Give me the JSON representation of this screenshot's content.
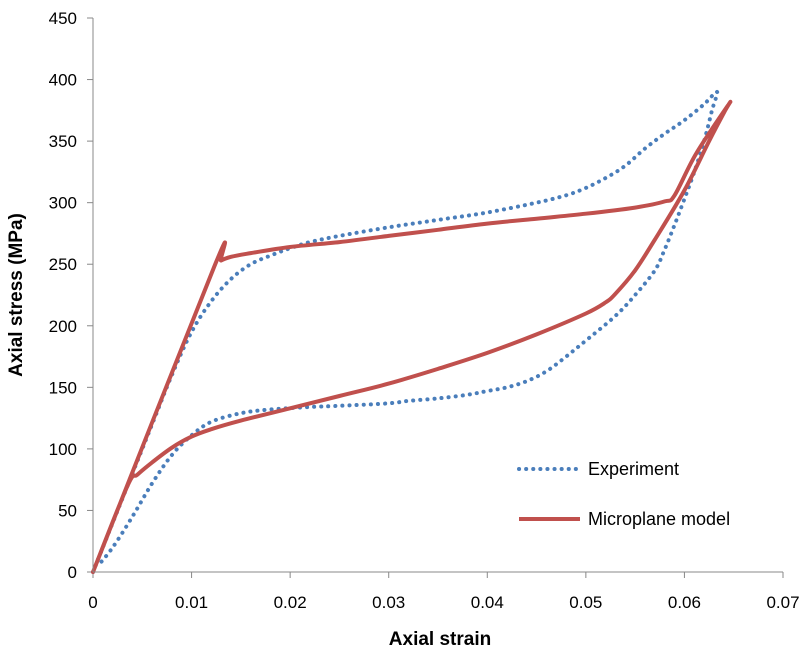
{
  "chart_data": {
    "type": "line",
    "title": "",
    "xlabel": "Axial strain",
    "ylabel": "Axial stress (MPa)",
    "xlim": [
      0,
      0.07
    ],
    "ylim": [
      0,
      450
    ],
    "x_ticks": [
      0,
      0.01,
      0.02,
      0.03,
      0.04,
      0.05,
      0.06,
      0.07
    ],
    "x_tick_labels": [
      "0",
      "0.01",
      "0.02",
      "0.03",
      "0.04",
      "0.05",
      "0.06",
      "0.07"
    ],
    "y_ticks": [
      0,
      50,
      100,
      150,
      200,
      250,
      300,
      350,
      400,
      450
    ],
    "y_tick_labels": [
      "0",
      "50",
      "100",
      "150",
      "200",
      "250",
      "300",
      "350",
      "400",
      "450"
    ],
    "grid": false,
    "legend_position": "bottom-right",
    "series": [
      {
        "name": "Experiment",
        "style": "dotted",
        "color": "#4a7ebb",
        "points": [
          [
            0,
            0
          ],
          [
            0.002,
            40
          ],
          [
            0.004,
            80
          ],
          [
            0.006,
            120
          ],
          [
            0.008,
            160
          ],
          [
            0.01,
            195
          ],
          [
            0.012,
            220
          ],
          [
            0.014,
            238
          ],
          [
            0.016,
            250
          ],
          [
            0.018,
            257
          ],
          [
            0.02,
            263
          ],
          [
            0.022,
            268
          ],
          [
            0.025,
            273
          ],
          [
            0.03,
            280
          ],
          [
            0.035,
            286
          ],
          [
            0.04,
            292
          ],
          [
            0.045,
            300
          ],
          [
            0.048,
            306
          ],
          [
            0.05,
            312
          ],
          [
            0.052,
            320
          ],
          [
            0.054,
            330
          ],
          [
            0.056,
            344
          ],
          [
            0.058,
            356
          ],
          [
            0.06,
            367
          ],
          [
            0.062,
            380
          ],
          [
            0.0633,
            390
          ],
          [
            0.0628,
            375
          ],
          [
            0.062,
            350
          ],
          [
            0.061,
            325
          ],
          [
            0.06,
            303
          ],
          [
            0.059,
            282
          ],
          [
            0.058,
            262
          ],
          [
            0.057,
            245
          ],
          [
            0.055,
            225
          ],
          [
            0.053,
            208
          ],
          [
            0.05,
            188
          ],
          [
            0.048,
            175
          ],
          [
            0.046,
            163
          ],
          [
            0.044,
            155
          ],
          [
            0.042,
            150
          ],
          [
            0.04,
            147
          ],
          [
            0.038,
            144
          ],
          [
            0.035,
            141
          ],
          [
            0.032,
            139
          ],
          [
            0.03,
            137
          ],
          [
            0.025,
            135
          ],
          [
            0.022,
            134
          ],
          [
            0.018,
            132
          ],
          [
            0.015,
            129
          ],
          [
            0.012,
            122
          ],
          [
            0.01,
            111
          ],
          [
            0.008,
            95
          ],
          [
            0.006,
            72
          ],
          [
            0.004,
            45
          ],
          [
            0.002,
            20
          ],
          [
            0.0005,
            5
          ]
        ]
      },
      {
        "name": "Microplane model",
        "style": "solid",
        "color": "#c0504d",
        "points": [
          [
            0,
            0
          ],
          [
            0.0123,
            248
          ],
          [
            0.013,
            253
          ],
          [
            0.014,
            256
          ],
          [
            0.016,
            259
          ],
          [
            0.02,
            264
          ],
          [
            0.025,
            268
          ],
          [
            0.03,
            273
          ],
          [
            0.035,
            278
          ],
          [
            0.04,
            283
          ],
          [
            0.045,
            287
          ],
          [
            0.05,
            291
          ],
          [
            0.055,
            296
          ],
          [
            0.058,
            301
          ],
          [
            0.059,
            306
          ],
          [
            0.0612,
            340
          ],
          [
            0.0645,
            380
          ],
          [
            0.064,
            373
          ],
          [
            0.0625,
            350
          ],
          [
            0.06,
            310
          ],
          [
            0.057,
            270
          ],
          [
            0.055,
            245
          ],
          [
            0.053,
            226
          ],
          [
            0.052,
            219
          ],
          [
            0.05,
            210
          ],
          [
            0.045,
            193
          ],
          [
            0.04,
            178
          ],
          [
            0.035,
            165
          ],
          [
            0.03,
            153
          ],
          [
            0.025,
            143
          ],
          [
            0.02,
            133
          ],
          [
            0.015,
            123
          ],
          [
            0.012,
            116
          ],
          [
            0.01,
            110
          ],
          [
            0.008,
            101
          ],
          [
            0.006,
            89
          ],
          [
            0.0045,
            79
          ],
          [
            0.0035,
            70
          ],
          [
            0,
            0
          ]
        ]
      }
    ]
  }
}
